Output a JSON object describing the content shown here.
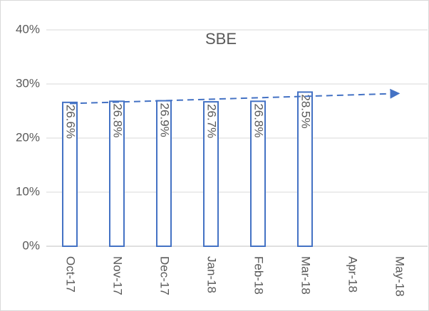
{
  "chart_data": {
    "type": "bar",
    "title": "SBE",
    "categories": [
      "Oct-17",
      "Nov-17",
      "Dec-17",
      "Jan-18",
      "Feb-18",
      "Mar-18",
      "Apr-18",
      "May-18"
    ],
    "values": [
      26.6,
      26.8,
      26.9,
      26.7,
      26.8,
      28.5,
      null,
      null
    ],
    "value_labels": [
      "26.6%",
      "26.8%",
      "26.9%",
      "26.7%",
      "26.8%",
      "28.5%",
      null,
      null
    ],
    "color": "#4472c4",
    "ylim": [
      0,
      40
    ],
    "yticks": [
      {
        "value": 0,
        "label": "0%"
      },
      {
        "value": 10,
        "label": "10%"
      },
      {
        "value": 20,
        "label": "20%"
      },
      {
        "value": 30,
        "label": "30%"
      },
      {
        "value": 40,
        "label": "40%"
      }
    ],
    "grid": true,
    "trendline": true
  }
}
